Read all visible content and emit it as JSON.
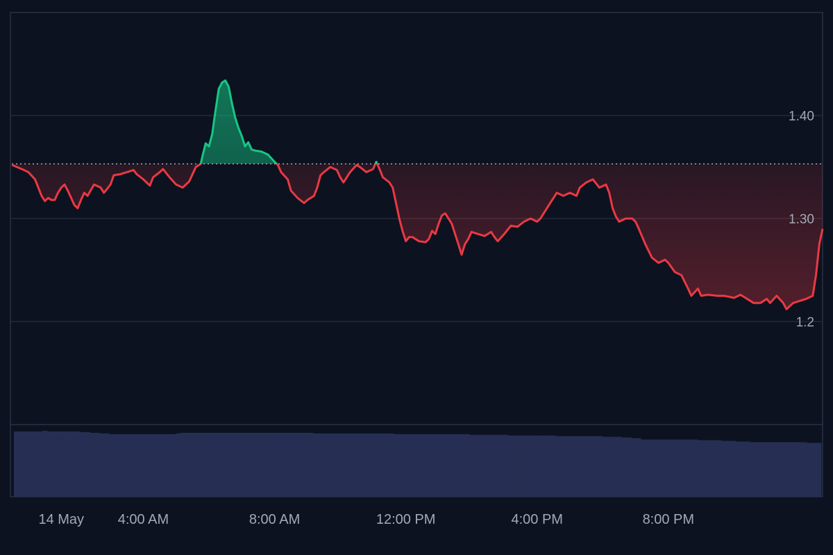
{
  "colors": {
    "background": "#0c1220",
    "frame": "#2a3142",
    "grid": "#232a3a",
    "up_line": "#16c784",
    "down_line": "#ea3943",
    "baseline": "#c8ccd4",
    "volume": "#262f53",
    "tick_text": "#a4a9b6"
  },
  "chart_data": {
    "type": "area",
    "price_chart": {
      "baseline": 1.353,
      "ylim": [
        1.1,
        1.5
      ],
      "y_ticks": [
        {
          "value": 1.4,
          "label": "1.40"
        },
        {
          "value": 1.3,
          "label": "1.30"
        },
        {
          "value": 1.2,
          "label": "1.2"
        }
      ],
      "x_ticks": [
        {
          "hour": 1.5,
          "label": "14 May"
        },
        {
          "hour": 4,
          "label": "4:00 AM"
        },
        {
          "hour": 8,
          "label": "8:00 AM"
        },
        {
          "hour": 12,
          "label": "12:00 PM"
        },
        {
          "hour": 16,
          "label": "4:00 PM"
        },
        {
          "hour": 20,
          "label": "8:00 PM"
        }
      ],
      "xlim": [
        -0.05,
        24.7
      ],
      "points": [
        [
          0.0,
          1.352
        ],
        [
          0.3,
          1.348
        ],
        [
          0.5,
          1.345
        ],
        [
          0.7,
          1.338
        ],
        [
          0.8,
          1.33
        ],
        [
          0.9,
          1.322
        ],
        [
          1.0,
          1.317
        ],
        [
          1.1,
          1.32
        ],
        [
          1.2,
          1.318
        ],
        [
          1.3,
          1.318
        ],
        [
          1.4,
          1.325
        ],
        [
          1.5,
          1.33
        ],
        [
          1.6,
          1.333
        ],
        [
          1.7,
          1.327
        ],
        [
          1.8,
          1.32
        ],
        [
          1.9,
          1.313
        ],
        [
          2.0,
          1.31
        ],
        [
          2.1,
          1.318
        ],
        [
          2.2,
          1.325
        ],
        [
          2.3,
          1.322
        ],
        [
          2.5,
          1.333
        ],
        [
          2.7,
          1.33
        ],
        [
          2.8,
          1.325
        ],
        [
          3.0,
          1.333
        ],
        [
          3.1,
          1.342
        ],
        [
          3.3,
          1.343
        ],
        [
          3.5,
          1.345
        ],
        [
          3.7,
          1.347
        ],
        [
          3.8,
          1.343
        ],
        [
          4.0,
          1.338
        ],
        [
          4.2,
          1.332
        ],
        [
          4.3,
          1.34
        ],
        [
          4.5,
          1.345
        ],
        [
          4.6,
          1.348
        ],
        [
          4.8,
          1.34
        ],
        [
          5.0,
          1.333
        ],
        [
          5.2,
          1.33
        ],
        [
          5.4,
          1.336
        ],
        [
          5.6,
          1.35
        ],
        [
          5.75,
          1.353
        ],
        [
          5.8,
          1.36
        ],
        [
          5.9,
          1.373
        ],
        [
          6.0,
          1.37
        ],
        [
          6.1,
          1.382
        ],
        [
          6.2,
          1.405
        ],
        [
          6.3,
          1.426
        ],
        [
          6.4,
          1.432
        ],
        [
          6.5,
          1.434
        ],
        [
          6.6,
          1.428
        ],
        [
          6.7,
          1.412
        ],
        [
          6.8,
          1.398
        ],
        [
          6.9,
          1.388
        ],
        [
          7.0,
          1.38
        ],
        [
          7.1,
          1.37
        ],
        [
          7.2,
          1.374
        ],
        [
          7.3,
          1.367
        ],
        [
          7.4,
          1.366
        ],
        [
          7.6,
          1.365
        ],
        [
          7.8,
          1.362
        ],
        [
          8.0,
          1.355
        ],
        [
          8.1,
          1.352
        ],
        [
          8.2,
          1.345
        ],
        [
          8.4,
          1.338
        ],
        [
          8.5,
          1.327
        ],
        [
          8.7,
          1.32
        ],
        [
          8.9,
          1.315
        ],
        [
          9.0,
          1.318
        ],
        [
          9.2,
          1.322
        ],
        [
          9.3,
          1.33
        ],
        [
          9.4,
          1.342
        ],
        [
          9.5,
          1.345
        ],
        [
          9.7,
          1.35
        ],
        [
          9.9,
          1.347
        ],
        [
          10.0,
          1.34
        ],
        [
          10.1,
          1.335
        ],
        [
          10.3,
          1.345
        ],
        [
          10.5,
          1.352
        ],
        [
          10.6,
          1.35
        ],
        [
          10.8,
          1.345
        ],
        [
          11.0,
          1.348
        ],
        [
          11.1,
          1.355
        ],
        [
          11.2,
          1.348
        ],
        [
          11.3,
          1.34
        ],
        [
          11.5,
          1.335
        ],
        [
          11.6,
          1.33
        ],
        [
          11.7,
          1.315
        ],
        [
          11.8,
          1.3
        ],
        [
          11.9,
          1.288
        ],
        [
          12.0,
          1.278
        ],
        [
          12.1,
          1.282
        ],
        [
          12.2,
          1.282
        ],
        [
          12.4,
          1.278
        ],
        [
          12.6,
          1.277
        ],
        [
          12.7,
          1.28
        ],
        [
          12.8,
          1.288
        ],
        [
          12.9,
          1.285
        ],
        [
          13.0,
          1.295
        ],
        [
          13.1,
          1.303
        ],
        [
          13.2,
          1.305
        ],
        [
          13.4,
          1.295
        ],
        [
          13.6,
          1.275
        ],
        [
          13.7,
          1.265
        ],
        [
          13.8,
          1.275
        ],
        [
          13.9,
          1.28
        ],
        [
          14.0,
          1.287
        ],
        [
          14.2,
          1.285
        ],
        [
          14.4,
          1.283
        ],
        [
          14.6,
          1.287
        ],
        [
          14.7,
          1.282
        ],
        [
          14.8,
          1.278
        ],
        [
          15.0,
          1.285
        ],
        [
          15.2,
          1.293
        ],
        [
          15.4,
          1.292
        ],
        [
          15.6,
          1.297
        ],
        [
          15.8,
          1.3
        ],
        [
          16.0,
          1.297
        ],
        [
          16.1,
          1.3
        ],
        [
          16.2,
          1.305
        ],
        [
          16.4,
          1.315
        ],
        [
          16.5,
          1.32
        ],
        [
          16.6,
          1.325
        ],
        [
          16.8,
          1.322
        ],
        [
          17.0,
          1.325
        ],
        [
          17.2,
          1.322
        ],
        [
          17.3,
          1.33
        ],
        [
          17.5,
          1.335
        ],
        [
          17.7,
          1.338
        ],
        [
          17.9,
          1.33
        ],
        [
          18.1,
          1.333
        ],
        [
          18.2,
          1.325
        ],
        [
          18.3,
          1.31
        ],
        [
          18.4,
          1.302
        ],
        [
          18.5,
          1.297
        ],
        [
          18.7,
          1.3
        ],
        [
          18.9,
          1.3
        ],
        [
          19.0,
          1.297
        ],
        [
          19.1,
          1.29
        ],
        [
          19.3,
          1.275
        ],
        [
          19.5,
          1.262
        ],
        [
          19.7,
          1.257
        ],
        [
          19.9,
          1.26
        ],
        [
          20.0,
          1.257
        ],
        [
          20.2,
          1.248
        ],
        [
          20.4,
          1.245
        ],
        [
          20.6,
          1.232
        ],
        [
          20.7,
          1.225
        ],
        [
          20.9,
          1.232
        ],
        [
          21.0,
          1.225
        ],
        [
          21.2,
          1.226
        ],
        [
          21.5,
          1.225
        ],
        [
          21.7,
          1.225
        ],
        [
          22.0,
          1.223
        ],
        [
          22.2,
          1.226
        ],
        [
          22.4,
          1.222
        ],
        [
          22.6,
          1.218
        ],
        [
          22.8,
          1.218
        ],
        [
          23.0,
          1.222
        ],
        [
          23.1,
          1.218
        ],
        [
          23.3,
          1.225
        ],
        [
          23.5,
          1.218
        ],
        [
          23.6,
          1.212
        ],
        [
          23.8,
          1.218
        ],
        [
          24.0,
          1.22
        ],
        [
          24.2,
          1.222
        ],
        [
          24.4,
          1.225
        ],
        [
          24.5,
          1.245
        ],
        [
          24.6,
          1.275
        ],
        [
          24.7,
          1.29
        ]
      ]
    },
    "volume": {
      "values": [
        0.97,
        0.97,
        0.97,
        0.97,
        0.97,
        0.97,
        0.98,
        0.97,
        0.97,
        0.97,
        0.97,
        0.97,
        0.97,
        0.97,
        0.96,
        0.96,
        0.95,
        0.95,
        0.94,
        0.94,
        0.93,
        0.93,
        0.93,
        0.93,
        0.93,
        0.93,
        0.93,
        0.93,
        0.93,
        0.93,
        0.93,
        0.93,
        0.93,
        0.93,
        0.94,
        0.95,
        0.95,
        0.95,
        0.95,
        0.95,
        0.95,
        0.95,
        0.95,
        0.95,
        0.95,
        0.95,
        0.95,
        0.95,
        0.95,
        0.95,
        0.95,
        0.95,
        0.95,
        0.95,
        0.95,
        0.95,
        0.95,
        0.95,
        0.95,
        0.95,
        0.95,
        0.95,
        0.95,
        0.94,
        0.94,
        0.94,
        0.94,
        0.94,
        0.94,
        0.94,
        0.94,
        0.94,
        0.94,
        0.94,
        0.94,
        0.94,
        0.94,
        0.94,
        0.94,
        0.94,
        0.93,
        0.93,
        0.93,
        0.93,
        0.93,
        0.93,
        0.93,
        0.93,
        0.93,
        0.93,
        0.93,
        0.93,
        0.93,
        0.93,
        0.93,
        0.93,
        0.92,
        0.92,
        0.92,
        0.92,
        0.92,
        0.92,
        0.92,
        0.92,
        0.91,
        0.91,
        0.91,
        0.91,
        0.91,
        0.91,
        0.91,
        0.91,
        0.91,
        0.91,
        0.9,
        0.9,
        0.9,
        0.9,
        0.9,
        0.9,
        0.9,
        0.9,
        0.9,
        0.9,
        0.89,
        0.89,
        0.89,
        0.89,
        0.88,
        0.88,
        0.87,
        0.87,
        0.85,
        0.85,
        0.85,
        0.85,
        0.85,
        0.85,
        0.85,
        0.85,
        0.85,
        0.85,
        0.85,
        0.85,
        0.84,
        0.84,
        0.84,
        0.84,
        0.84,
        0.83,
        0.83,
        0.83,
        0.82,
        0.82,
        0.82,
        0.81,
        0.81,
        0.81,
        0.81,
        0.81,
        0.81,
        0.81,
        0.81,
        0.81,
        0.81,
        0.81,
        0.81,
        0.8,
        0.8,
        0.8
      ]
    }
  }
}
